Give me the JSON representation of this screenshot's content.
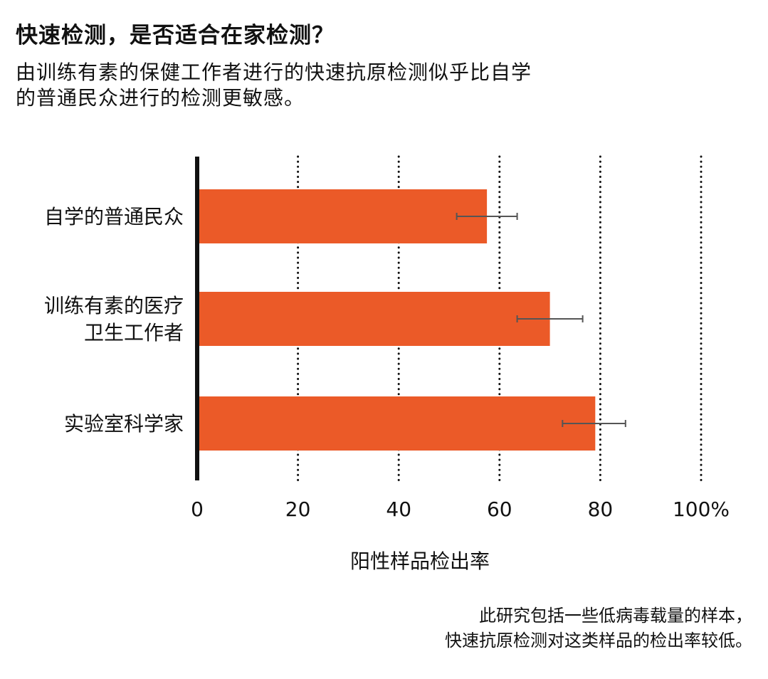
{
  "header": {
    "title": "快速检测，是否适合在家检测？",
    "subtitle_lines": [
      "由训练有素的保健工作者进行的快速抗原检测似乎比自学",
      "的普通民众进行的检测更敏感。"
    ]
  },
  "footnote": {
    "lines": [
      "此研究包括一些低病毒载量的样本，",
      "快速抗原检测对这类样品的检出率较低。"
    ]
  },
  "colors": {
    "bar": "#EB5A28",
    "axis": "#111111",
    "error_bar": "#555555",
    "text": "#111111"
  },
  "chart_data": {
    "type": "bar",
    "orientation": "horizontal",
    "title": "",
    "xlabel": "阳性样品检出率",
    "ylabel": "",
    "xlim": [
      0,
      100
    ],
    "grid": "dotted vertical lines at 20, 40, 60, 80, 100",
    "x_ticks": [
      {
        "value": 0,
        "label": "0"
      },
      {
        "value": 20,
        "label": "20"
      },
      {
        "value": 40,
        "label": "40"
      },
      {
        "value": 60,
        "label": "60"
      },
      {
        "value": 80,
        "label": "80"
      },
      {
        "value": 100,
        "label": "100%"
      }
    ],
    "categories": [
      {
        "label_lines": [
          "自学的普通民众"
        ]
      },
      {
        "label_lines": [
          "训练有素的医疗",
          "卫生工作者"
        ]
      },
      {
        "label_lines": [
          "实验室科学家"
        ]
      }
    ],
    "values": [
      57.5,
      70.0,
      79.0
    ],
    "error_low": [
      51.5,
      63.5,
      72.5
    ],
    "error_high": [
      63.5,
      76.5,
      85.0
    ]
  }
}
